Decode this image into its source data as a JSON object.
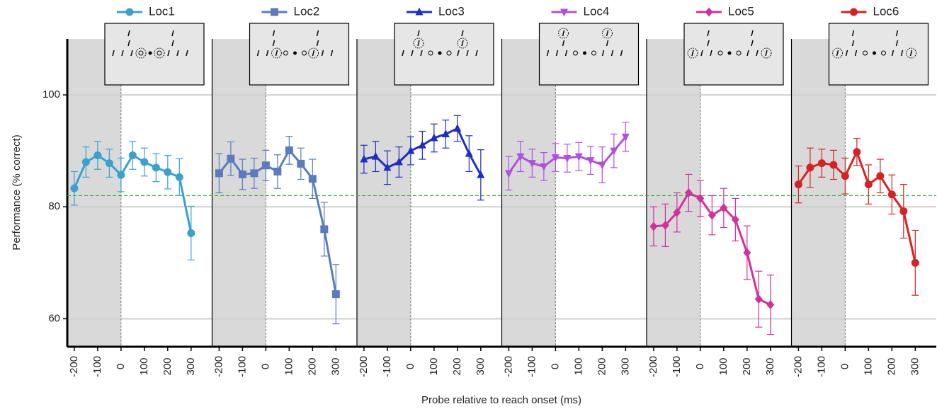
{
  "chart_data": {
    "type": "line",
    "y_label": "Performance (% correct)",
    "x_label": "Probe relative to reach onset (ms)",
    "x": [
      -200,
      -150,
      -100,
      -50,
      0,
      50,
      100,
      150,
      200,
      250,
      300
    ],
    "xlim": [
      -230,
      390
    ],
    "xticks": [
      -200,
      -100,
      0,
      100,
      200,
      300
    ],
    "ylim": [
      55,
      110
    ],
    "yticks": [
      60,
      80,
      100
    ],
    "grid": true,
    "reference_line": 82,
    "reference_color": "#2db52d",
    "shaded_xrange": [
      -230,
      0
    ],
    "series": [
      {
        "name": "Loc1",
        "color": "#3aa0d0",
        "marker": "circle",
        "values": [
          83.3,
          88,
          89.2,
          87.8,
          85.7,
          89.2,
          88,
          87,
          86.2,
          85.3,
          75.3
        ],
        "errors": [
          3,
          2.7,
          2.5,
          2.5,
          3,
          2.5,
          2.5,
          2.5,
          3,
          3.3,
          4.8
        ]
      },
      {
        "name": "Loc2",
        "color": "#5a7bbd",
        "marker": "square",
        "values": [
          86,
          88.6,
          85.8,
          86,
          87.4,
          86.3,
          90.1,
          87.7,
          85,
          76,
          64.4
        ],
        "errors": [
          3.5,
          3,
          2.7,
          2.7,
          2.7,
          3,
          2.5,
          2.8,
          3.5,
          4.8,
          5.3
        ]
      },
      {
        "name": "Loc3",
        "color": "#1c2fc2",
        "marker": "triangle",
        "values": [
          88.5,
          89,
          87,
          88,
          90,
          91,
          92.3,
          93,
          94,
          89.5,
          85.7
        ],
        "errors": [
          2.5,
          2.7,
          3,
          2.7,
          2.5,
          2.5,
          2.5,
          2.5,
          2.3,
          3.2,
          4.5
        ]
      },
      {
        "name": "Loc4",
        "color": "#b24fe2",
        "marker": "triangle-down",
        "values": [
          86,
          89,
          87.8,
          87.2,
          88.8,
          88.7,
          89,
          88.3,
          87.5,
          90,
          92.5
        ],
        "errors": [
          3,
          2.7,
          2.5,
          2.5,
          2.5,
          2.5,
          2.5,
          2.5,
          3.2,
          3,
          2.6
        ]
      },
      {
        "name": "Loc5",
        "color": "#d2309f",
        "marker": "diamond",
        "values": [
          76.5,
          76.7,
          79,
          82.5,
          81.5,
          78.5,
          79.8,
          77.7,
          71.8,
          63.5,
          62.5
        ],
        "errors": [
          3.5,
          3.8,
          3.5,
          3.3,
          3.2,
          3.5,
          3.5,
          3.8,
          4.8,
          5,
          5.3
        ]
      },
      {
        "name": "Loc6",
        "color": "#d62222",
        "marker": "circle",
        "values": [
          84,
          87,
          87.8,
          87.5,
          85.5,
          89.8,
          84,
          85.5,
          82.2,
          79.2,
          70
        ],
        "errors": [
          3.3,
          3.5,
          2.5,
          2.6,
          3.2,
          2.4,
          3.5,
          3,
          3.5,
          4.8,
          5.8
        ]
      }
    ]
  }
}
